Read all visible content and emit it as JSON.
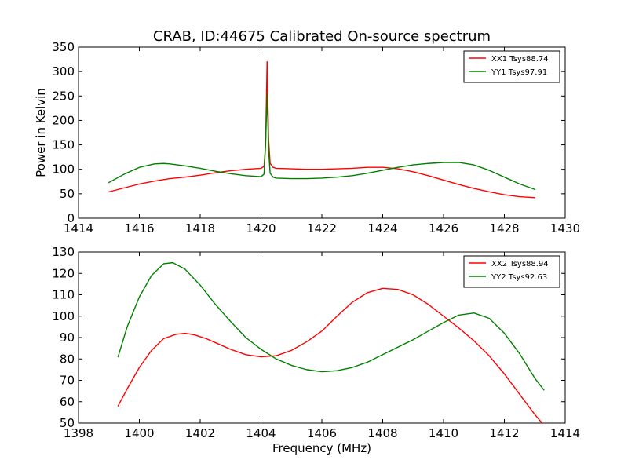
{
  "colors": {
    "red": "#ff0000",
    "green": "#008000"
  },
  "chart_data": [
    {
      "type": "line",
      "title": "CRAB, ID:44675 Calibrated On-source spectrum",
      "xlabel": "",
      "ylabel": "Power in Kelvin",
      "xlim": [
        1414,
        1430
      ],
      "ylim": [
        0,
        350
      ],
      "xticks": [
        1414,
        1416,
        1418,
        1420,
        1422,
        1424,
        1426,
        1428,
        1430
      ],
      "yticks": [
        0,
        50,
        100,
        150,
        200,
        250,
        300,
        350
      ],
      "legend_position": "upper right",
      "series": [
        {
          "name": "XX1 Tsys88.74",
          "color": "#ff0000",
          "x": [
            1415.0,
            1415.5,
            1416.0,
            1416.5,
            1417.0,
            1417.5,
            1418.0,
            1418.5,
            1419.0,
            1419.5,
            1420.0,
            1420.1,
            1420.15,
            1420.2,
            1420.25,
            1420.3,
            1420.4,
            1420.5,
            1421.0,
            1421.5,
            1422.0,
            1422.5,
            1423.0,
            1423.5,
            1424.0,
            1424.5,
            1425.0,
            1425.5,
            1426.0,
            1426.5,
            1427.0,
            1427.5,
            1428.0,
            1428.5,
            1429.0
          ],
          "y": [
            54,
            62,
            70,
            76,
            81,
            84,
            88,
            93,
            97,
            100,
            102,
            106,
            150,
            320,
            160,
            112,
            104,
            102,
            101,
            100,
            100,
            101,
            102,
            104,
            104,
            101,
            95,
            87,
            78,
            69,
            61,
            54,
            48,
            44,
            42
          ]
        },
        {
          "name": "YY1 Tsys97.91",
          "color": "#008000",
          "x": [
            1415.0,
            1415.5,
            1416.0,
            1416.5,
            1416.8,
            1417.0,
            1417.5,
            1418.0,
            1418.5,
            1419.0,
            1419.5,
            1420.0,
            1420.1,
            1420.15,
            1420.2,
            1420.25,
            1420.3,
            1420.4,
            1420.5,
            1421.0,
            1421.5,
            1422.0,
            1422.5,
            1423.0,
            1423.5,
            1424.0,
            1424.5,
            1425.0,
            1425.5,
            1426.0,
            1426.5,
            1427.0,
            1427.5,
            1428.0,
            1428.5,
            1429.0
          ],
          "y": [
            73,
            90,
            104,
            111,
            112,
            111,
            107,
            102,
            96,
            91,
            87,
            85,
            90,
            150,
            255,
            140,
            92,
            84,
            82,
            81,
            81,
            82,
            84,
            87,
            92,
            98,
            104,
            109,
            112,
            114,
            114,
            109,
            98,
            84,
            70,
            59
          ]
        }
      ]
    },
    {
      "type": "line",
      "title": "",
      "xlabel": "Frequency (MHz)",
      "ylabel": "",
      "xlim": [
        1398,
        1414
      ],
      "ylim": [
        50,
        130
      ],
      "xticks": [
        1398,
        1400,
        1402,
        1404,
        1406,
        1408,
        1410,
        1412,
        1414
      ],
      "yticks": [
        50,
        60,
        70,
        80,
        90,
        100,
        110,
        120,
        130
      ],
      "legend_position": "upper right",
      "series": [
        {
          "name": "XX2 Tsys88.94",
          "color": "#ff0000",
          "x": [
            1399.3,
            1399.6,
            1400.0,
            1400.4,
            1400.8,
            1401.2,
            1401.5,
            1401.8,
            1402.2,
            1402.6,
            1403.0,
            1403.5,
            1404.0,
            1404.5,
            1405.0,
            1405.5,
            1406.0,
            1406.5,
            1407.0,
            1407.5,
            1408.0,
            1408.5,
            1409.0,
            1409.5,
            1410.0,
            1410.5,
            1411.0,
            1411.5,
            1412.0,
            1412.5,
            1413.0,
            1413.3
          ],
          "y": [
            58,
            66,
            76,
            84,
            89.5,
            91.5,
            92,
            91.3,
            89.5,
            87,
            84.5,
            82,
            81,
            81.5,
            84,
            88,
            93,
            100,
            106.5,
            111,
            113,
            112.5,
            110,
            105.5,
            100,
            94.5,
            88.5,
            81.5,
            73,
            63.5,
            54,
            49
          ]
        },
        {
          "name": "YY2 Tsys92.63",
          "color": "#008000",
          "x": [
            1399.3,
            1399.6,
            1400.0,
            1400.4,
            1400.8,
            1401.1,
            1401.5,
            1402.0,
            1402.5,
            1403.0,
            1403.5,
            1404.0,
            1404.5,
            1405.0,
            1405.5,
            1406.0,
            1406.5,
            1407.0,
            1407.5,
            1408.0,
            1408.5,
            1409.0,
            1409.5,
            1410.0,
            1410.5,
            1411.0,
            1411.5,
            1412.0,
            1412.5,
            1413.0,
            1413.3
          ],
          "y": [
            81,
            95,
            109,
            119,
            124.5,
            125,
            122,
            114.5,
            105.5,
            97.5,
            90,
            84.5,
            80,
            77,
            75,
            74,
            74.5,
            76,
            78.5,
            82,
            85.5,
            89,
            93,
            97,
            100.5,
            101.5,
            99,
            92,
            82.5,
            71,
            65.5
          ]
        }
      ]
    }
  ]
}
